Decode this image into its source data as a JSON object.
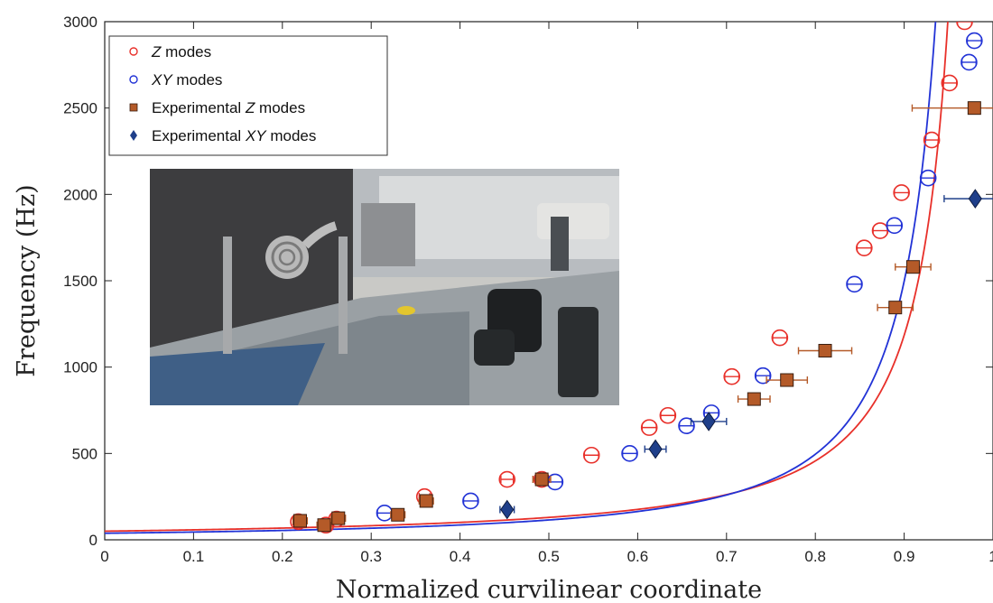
{
  "chart_data": {
    "type": "scatter",
    "xlabel": "Normalized curvilinear coordinate",
    "ylabel": "Frequency (Hz)",
    "xlim": [
      0,
      1
    ],
    "ylim": [
      0,
      3000
    ],
    "x_ticks": [
      "0",
      "0.1",
      "0.2",
      "0.3",
      "0.4",
      "0.5",
      "0.6",
      "0.7",
      "0.8",
      "0.9",
      "1"
    ],
    "y_ticks": [
      "0",
      "500",
      "1000",
      "1500",
      "2000",
      "2500",
      "3000"
    ],
    "grid": false,
    "legend_position": "top-left",
    "inset_photo": "experimental setup photo (spiral specimen, laser vibrometer)",
    "colors": {
      "z": "#e8302a",
      "xy": "#2233d6",
      "exp_z": "#b45a28",
      "exp_xy": "#1f3f8a"
    },
    "series": [
      {
        "name_parts": [
          [
            "Z",
            true
          ],
          [
            " modes",
            false
          ]
        ],
        "kind": "open-circle",
        "color": "#e8302a",
        "x": [
          0.218,
          0.249,
          0.261,
          0.36,
          0.453,
          0.492,
          0.548,
          0.613,
          0.634,
          0.706,
          0.76,
          0.855,
          0.873,
          0.897,
          0.931,
          0.951,
          0.968
        ],
        "y": [
          105,
          85,
          120,
          250,
          350,
          350,
          490,
          650,
          720,
          945,
          1170,
          1690,
          1790,
          2010,
          2315,
          2645,
          3000
        ],
        "xerr": [
          0.006,
          0.006,
          0.006,
          0.006,
          0.007,
          0.008,
          0.008,
          0.008,
          0.008,
          0.008,
          0.008,
          0.008,
          0.008,
          0.008,
          0.008,
          0.008,
          0.008
        ]
      },
      {
        "name_parts": [
          [
            "XY",
            true
          ],
          [
            " modes",
            false
          ]
        ],
        "kind": "open-circle",
        "color": "#2233d6",
        "x": [
          0.315,
          0.412,
          0.507,
          0.591,
          0.655,
          0.683,
          0.741,
          0.844,
          0.889,
          0.927,
          0.973,
          0.979
        ],
        "y": [
          155,
          225,
          335,
          500,
          660,
          735,
          950,
          1480,
          1820,
          2095,
          2765,
          2890
        ],
        "xerr": [
          0.008,
          0.008,
          0.008,
          0.008,
          0.008,
          0.008,
          0.008,
          0.008,
          0.008,
          0.008,
          0.008,
          0.008
        ]
      },
      {
        "name_parts": [
          [
            "Experimental ",
            false
          ],
          [
            "Z",
            true
          ],
          [
            " modes",
            false
          ]
        ],
        "kind": "square",
        "color": "#b45a28",
        "x": [
          0.22,
          0.247,
          0.263,
          0.33,
          0.362,
          0.492,
          0.731,
          0.768,
          0.811,
          0.89,
          0.91,
          0.979
        ],
        "y": [
          110,
          85,
          125,
          145,
          225,
          350,
          815,
          925,
          1095,
          1345,
          1580,
          2500
        ],
        "xerr": [
          0.008,
          0.008,
          0.008,
          0.008,
          0.008,
          0.01,
          0.018,
          0.023,
          0.03,
          0.02,
          0.02,
          0.07
        ]
      },
      {
        "name_parts": [
          [
            "Experimental ",
            false
          ],
          [
            "XY",
            true
          ],
          [
            " modes",
            false
          ]
        ],
        "kind": "diamond",
        "color": "#1f3f8a",
        "x": [
          0.453,
          0.62,
          0.68,
          0.98
        ],
        "y": [
          175,
          525,
          685,
          1975
        ],
        "xerr": [
          0.008,
          0.012,
          0.02,
          0.035
        ]
      }
    ],
    "fit_curves": [
      {
        "color": "#e8302a",
        "y0": 50,
        "c": 2.7,
        "p": 1.12
      },
      {
        "color": "#2233d6",
        "y0": 38,
        "c": 3.25,
        "p": 1.08
      }
    ]
  }
}
